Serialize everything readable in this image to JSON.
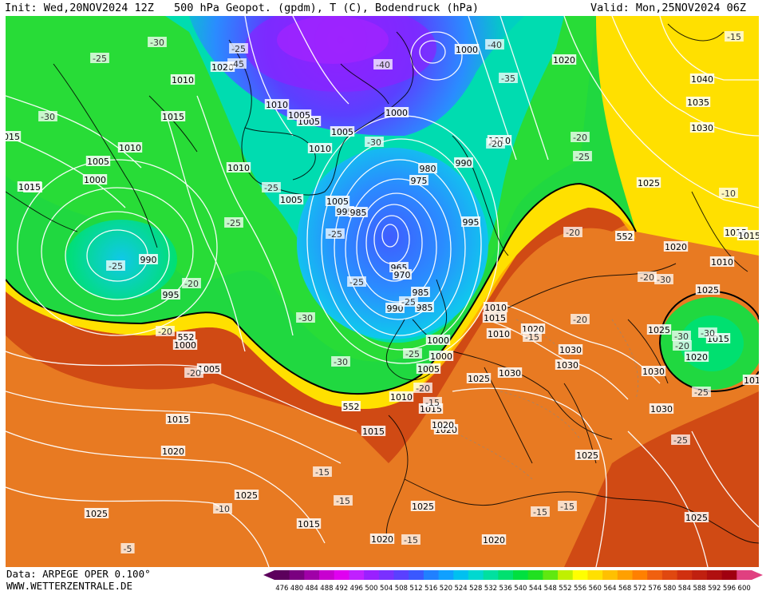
{
  "header": {
    "init": "Init: Wed,20NOV2024 12Z",
    "title": "500 hPa Geopot. (gpdm), T (C), Bodendruck (hPa)",
    "valid": "Valid: Mon,25NOV2024 06Z"
  },
  "footer": {
    "data_source": "Data: ARPEGE OPER 0.100°",
    "website": "WWW.WETTERZENTRALE.DE"
  },
  "legend": {
    "values": [
      "476",
      "480",
      "484",
      "488",
      "492",
      "496",
      "500",
      "504",
      "508",
      "512",
      "516",
      "520",
      "524",
      "528",
      "532",
      "536",
      "540",
      "544",
      "548",
      "552",
      "556",
      "560",
      "564",
      "568",
      "572",
      "576",
      "580",
      "584",
      "588",
      "592",
      "596",
      "600"
    ],
    "colors": [
      "#5c005c",
      "#7a0080",
      "#a000a8",
      "#c800d0",
      "#e000f0",
      "#c020ff",
      "#9a20ff",
      "#7a30ff",
      "#5a40ff",
      "#3a58ff",
      "#2080ff",
      "#10a0ff",
      "#00c0f0",
      "#00d8d0",
      "#00e0a0",
      "#00e070",
      "#00e040",
      "#20e020",
      "#60e810",
      "#c0f000",
      "#ffff00",
      "#ffe000",
      "#ffc000",
      "#ffa000",
      "#ff8000",
      "#f06010",
      "#e04810",
      "#d03010",
      "#c02010",
      "#b01010",
      "#a00010",
      "#e04080"
    ]
  },
  "map": {
    "pressure_labels": [
      "1020",
      "1010",
      "1005",
      "1015",
      "1010",
      "1005",
      "1000",
      "1000",
      "1005",
      "1010",
      "1005",
      "990",
      "995",
      "1000",
      "1010",
      "1015",
      "1020",
      "1010",
      "1005",
      "1005",
      "1000",
      "1010",
      "1005",
      "980",
      "975",
      "990",
      "995",
      "985",
      "995",
      "990",
      "985",
      "965",
      "970",
      "985",
      "990",
      "1010",
      "1015",
      "1020",
      "1000",
      "1005",
      "1010",
      "1015",
      "1015",
      "1020",
      "1025",
      "1030",
      "1030",
      "1025",
      "1030",
      "1025",
      "1030",
      "1035",
      "1040",
      "1025",
      "1020",
      "1015",
      "1015",
      "1025",
      "1010",
      "1015",
      "1030",
      "1020",
      "1010",
      "1025",
      "1020",
      "1020",
      "1015",
      "1025",
      "1020",
      "1025",
      "1000",
      "1025",
      "1030",
      "1010",
      "1015",
      "1020",
      "1015"
    ],
    "temperature_labels": [
      "-30",
      "-25",
      "-45",
      "-40",
      "-40",
      "-35",
      "-25",
      "-30",
      "-30",
      "-25",
      "-25",
      "-25",
      "-25",
      "-20",
      "-25",
      "-20",
      "-20",
      "-30",
      "-25",
      "-30",
      "-25",
      "-20",
      "-15",
      "-15",
      "-15",
      "-10",
      "-5",
      "-15",
      "-15",
      "-20",
      "-20",
      "-20",
      "-30",
      "-25",
      "-20",
      "-25",
      "-15",
      "-10",
      "-15",
      "-15",
      "-20",
      "-20",
      "-25",
      "-30",
      "-30"
    ],
    "contour_labels": [
      "552",
      "552",
      "552"
    ]
  }
}
